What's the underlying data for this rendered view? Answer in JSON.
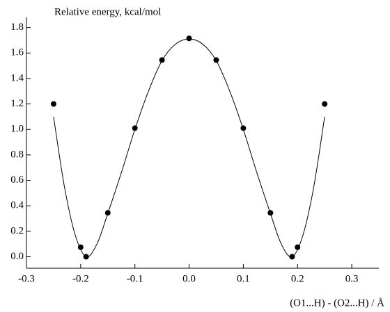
{
  "chart_data": {
    "type": "scatter",
    "title": "Relative energy, kcal/mol",
    "x_label": "(O1...H) - (O2...H) / Å",
    "xlim": [
      -0.3,
      0.35
    ],
    "xticks": [
      -0.3,
      -0.2,
      -0.1,
      {
        "value": 0,
        "label": "0.0"
      },
      0.1,
      0.2,
      0.3
    ],
    "ylim": [
      -0.09,
      1.88
    ],
    "yticks": [
      {
        "value": 0,
        "label": "0.0"
      },
      0.2,
      0.4,
      0.6,
      0.8,
      {
        "value": 1,
        "label": "1.0"
      },
      1.2,
      1.4,
      1.6,
      1.8
    ],
    "series": [
      {
        "type": "scatter",
        "color": "#000000",
        "x": [
          -0.25,
          -0.2,
          -0.19,
          -0.15,
          -0.1,
          -0.05,
          0,
          0.05,
          0.1,
          0.15,
          0.19,
          0.2,
          0.25
        ],
        "values": [
          1.2,
          0.075,
          0.0,
          0.345,
          1.01,
          1.545,
          1.715,
          1.545,
          1.01,
          0.345,
          0.0,
          0.075,
          1.2
        ]
      },
      {
        "type": "line",
        "color": "#000000",
        "x": [
          -0.25,
          -0.23,
          -0.21,
          -0.19,
          -0.17,
          -0.15,
          -0.125,
          -0.1,
          -0.075,
          -0.05,
          -0.025,
          0,
          0.025,
          0.05,
          0.075,
          0.1,
          0.125,
          0.15,
          0.17,
          0.19,
          0.21,
          0.23,
          0.25
        ],
        "values": [
          1.1,
          0.55,
          0.17,
          0.0,
          0.1,
          0.34,
          0.66,
          1.0,
          1.3,
          1.54,
          1.67,
          1.71,
          1.67,
          1.54,
          1.3,
          1.0,
          0.66,
          0.34,
          0.1,
          0.0,
          0.17,
          0.55,
          1.1
        ]
      }
    ]
  }
}
